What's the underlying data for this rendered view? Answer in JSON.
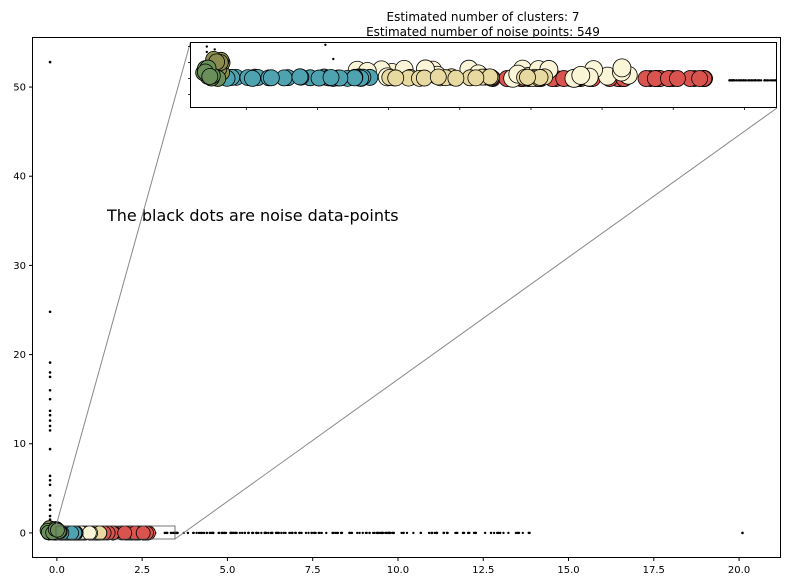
{
  "chart_data": {
    "type": "scatter",
    "title": "Estimated number of clusters: 7",
    "subtitle": "Estimated number of noise points: 549",
    "annotation": "The black dots are noise data-points",
    "xlabel": "",
    "ylabel": "",
    "xlim": [
      -0.7,
      21.2
    ],
    "ylim": [
      -2.7,
      55.5
    ],
    "x_ticks": [
      0.0,
      2.5,
      5.0,
      7.5,
      10.0,
      12.5,
      15.0,
      17.5,
      20.0
    ],
    "x_tick_labels": [
      "0.0",
      "2.5",
      "5.0",
      "7.5",
      "10.0",
      "12.5",
      "15.0",
      "17.5",
      "20.0"
    ],
    "y_ticks": [
      0,
      10,
      20,
      30,
      40,
      50
    ],
    "y_tick_labels": [
      "0",
      "10",
      "20",
      "30",
      "40",
      "50"
    ],
    "grid": false,
    "colors": {
      "red": "#d9534f",
      "beige": "#e8d9a0",
      "cream": "#fbf5d8",
      "teal": "#4fa3b0",
      "dark-olive": "#8a8d4e",
      "olive-green": "#6b8f5a",
      "noise": "#000000"
    },
    "clusters": [
      {
        "color": "red",
        "x_range": [
          1.2,
          2.7
        ],
        "y": 0
      },
      {
        "color": "beige",
        "x_range": [
          0.35,
          1.35
        ],
        "y": 0
      },
      {
        "color": "cream",
        "x_range": [
          0.1,
          1.2
        ],
        "y": 0
      },
      {
        "color": "teal",
        "x_range": [
          -0.25,
          0.55
        ],
        "y": 0
      },
      {
        "color": "dark-olive",
        "x_range": [
          -0.25,
          0.0
        ],
        "y_range": [
          0,
          0.6
        ]
      },
      {
        "color": "olive-green",
        "x_range": [
          -0.3,
          0.1
        ],
        "y_range": [
          0,
          0.4
        ]
      }
    ],
    "noise_points": [
      {
        "x": -0.2,
        "y": 52.8
      },
      {
        "x": -0.2,
        "y": 24.8
      },
      {
        "x": -0.2,
        "y": 19.1
      },
      {
        "x": -0.2,
        "y": 18.0
      },
      {
        "x": -0.2,
        "y": 17.5
      },
      {
        "x": -0.2,
        "y": 16.0
      },
      {
        "x": -0.2,
        "y": 15.0
      },
      {
        "x": -0.2,
        "y": 13.7
      },
      {
        "x": -0.2,
        "y": 13.2
      },
      {
        "x": -0.2,
        "y": 12.6
      },
      {
        "x": -0.2,
        "y": 12.0
      },
      {
        "x": -0.2,
        "y": 11.5
      },
      {
        "x": -0.2,
        "y": 9.4
      },
      {
        "x": -0.2,
        "y": 6.4
      },
      {
        "x": -0.2,
        "y": 5.9
      },
      {
        "x": -0.2,
        "y": 5.4
      },
      {
        "x": -0.2,
        "y": 4.2
      },
      {
        "x": -0.2,
        "y": 3.1
      },
      {
        "x": -0.2,
        "y": 2.6
      },
      {
        "x": -0.2,
        "y": 1.9
      },
      {
        "x": -0.2,
        "y": 1.5
      },
      {
        "x": -0.2,
        "y": 1.2
      },
      {
        "x": 20.1,
        "y": 0
      }
    ],
    "noise_x_range": [
      2.7,
      13.9
    ],
    "inset": {
      "xlim": [
        -0.7,
        3.0
      ],
      "ylim": [
        -0.8,
        1.0
      ],
      "ticks": "none"
    }
  }
}
